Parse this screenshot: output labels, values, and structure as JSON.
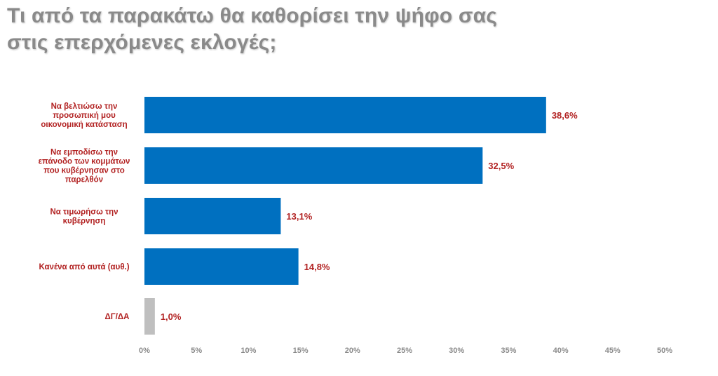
{
  "title": {
    "line1": "Τι από τα παρακάτω θα καθορίσει την ψήφο σας",
    "line2": "στις επερχόμενες εκλογές;"
  },
  "chart_data": {
    "type": "bar",
    "orientation": "horizontal",
    "categories": [
      [
        "Να βελτιώσω την",
        "προσωπική μου",
        "οικονομική κατάσταση"
      ],
      [
        "Να εμποδίσω την",
        "επάνοδο των κομμάτων",
        "που κυβέρνησαν στο",
        "παρελθόν"
      ],
      [
        "Να τιμωρήσω την",
        "κυβέρνηση"
      ],
      [
        "Κανένα από αυτά (αυθ.)"
      ],
      [
        "ΔΓ/ΔΑ"
      ]
    ],
    "values": [
      38.6,
      32.5,
      13.1,
      14.8,
      1.0
    ],
    "value_labels": [
      "38,6%",
      "32,5%",
      "13,1%",
      "14,8%",
      "1,0%"
    ],
    "colors": [
      "#0070c0",
      "#0070c0",
      "#0070c0",
      "#0070c0",
      "#bfbfbf"
    ],
    "xlim": [
      0,
      50
    ],
    "xticks": [
      0,
      5,
      10,
      15,
      20,
      25,
      30,
      35,
      40,
      45,
      50
    ],
    "xtick_labels": [
      "0%",
      "5%",
      "10%",
      "15%",
      "20%",
      "25%",
      "30%",
      "35%",
      "40%",
      "45%",
      "50%"
    ],
    "grid": false,
    "label_color": "#b22222",
    "tick_color": "#8a8a8a"
  }
}
